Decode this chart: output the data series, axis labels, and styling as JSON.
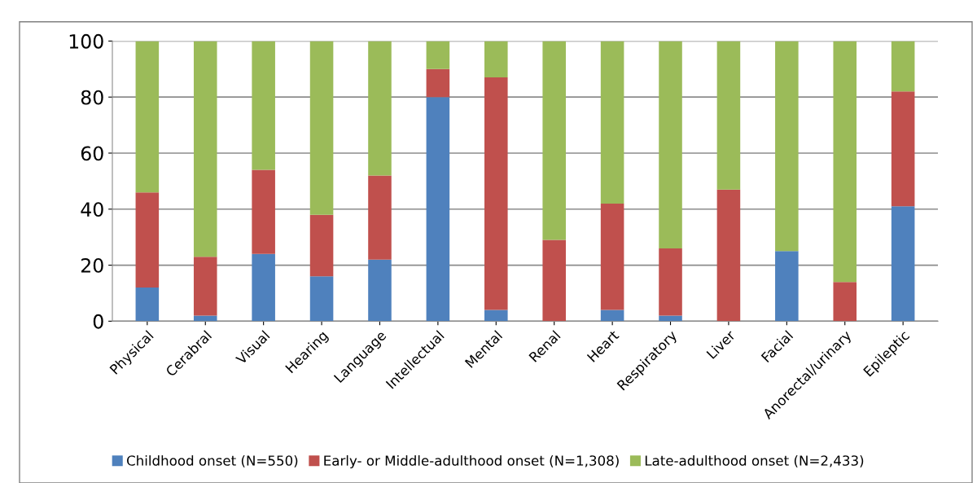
{
  "chart_data": {
    "type": "bar",
    "stacked": true,
    "categories": [
      "Physical",
      "Cerabral",
      "Visual",
      "Hearing",
      "Language",
      "Intellectual",
      "Mental",
      "Renal",
      "Heart",
      "Respiratory",
      "Liver",
      "Facial",
      "Anorectal/urinary",
      "Epileptic"
    ],
    "series": [
      {
        "name": "Childhood onset (N=550)",
        "color": "#4f81bd",
        "values": [
          12,
          2,
          24,
          16,
          22,
          80,
          4,
          0,
          4,
          2,
          0,
          25,
          0,
          41
        ]
      },
      {
        "name": "Early- or Middle-adulthood onset (N=1,308)",
        "color": "#c0504d",
        "values": [
          34,
          21,
          30,
          22,
          30,
          10,
          83,
          29,
          38,
          24,
          47,
          0,
          14,
          41
        ]
      },
      {
        "name": "Late-adulthood onset (N=2,433)",
        "color": "#9bbb59",
        "values": [
          54,
          77,
          46,
          62,
          48,
          10,
          13,
          71,
          58,
          74,
          53,
          75,
          86,
          18
        ]
      }
    ],
    "ylim": [
      0,
      100
    ],
    "yticks": [
      0,
      20,
      40,
      60,
      80,
      100
    ],
    "grid": "y",
    "legend": "bottom"
  }
}
